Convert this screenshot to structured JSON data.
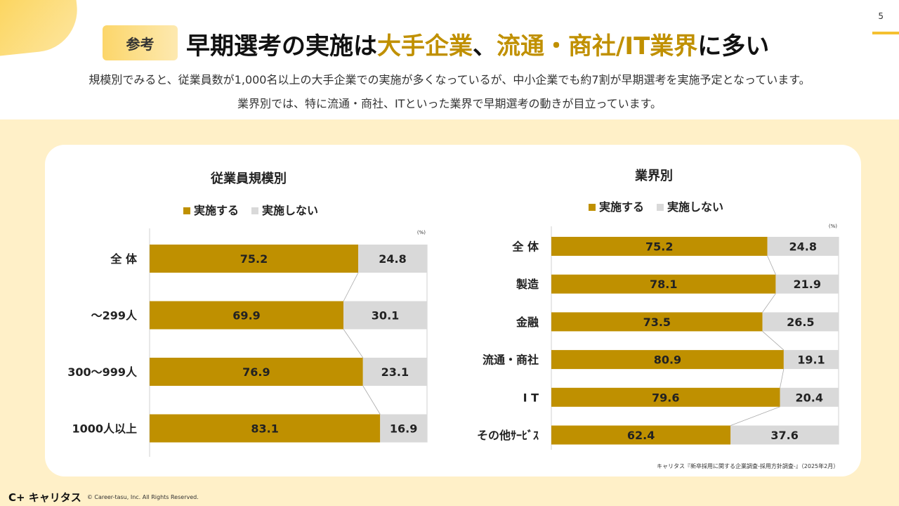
{
  "page_number": "5",
  "badge": "参考",
  "title": {
    "pre": "早期選考の実施は",
    "hl1": "大手企業",
    "mid": "、",
    "hl2": "流通・商社/IT業界",
    "post": "に多い"
  },
  "subtitle_lines": [
    "規模別でみると、従業員数が1,000名以上の大手企業での実施が多くなっているが、中小企業でも約7割が早期選考を実施予定となっています。",
    "業界別では、特に流通・商社、ITといった業界で早期選考の動きが目立っています。"
  ],
  "colors": {
    "implement": "#bf9000",
    "not_implement": "#d9d9d9",
    "accent": "#c09000"
  },
  "chart_data": [
    {
      "type": "bar",
      "stacked": true,
      "orientation": "horizontal",
      "title": "従業員規模別",
      "unit": "(%)",
      "legend_position": "top",
      "categories": [
        "全 体",
        "～299人",
        "300～999人",
        "1000人以上"
      ],
      "series": [
        {
          "name": "実施する",
          "values": [
            75.2,
            69.9,
            76.9,
            83.1
          ]
        },
        {
          "name": "実施しない",
          "values": [
            24.8,
            30.1,
            23.1,
            16.9
          ]
        }
      ],
      "xlim": [
        0,
        100
      ]
    },
    {
      "type": "bar",
      "stacked": true,
      "orientation": "horizontal",
      "title": "業界別",
      "unit": "(%)",
      "legend_position": "top",
      "categories": [
        "全 体",
        "製造",
        "金融",
        "流通・商社",
        "I T",
        "その他ｻｰﾋﾞｽ"
      ],
      "series": [
        {
          "name": "実施する",
          "values": [
            75.2,
            78.1,
            73.5,
            80.9,
            79.6,
            62.4
          ]
        },
        {
          "name": "実施しない",
          "values": [
            24.8,
            21.9,
            26.5,
            19.1,
            20.4,
            37.6
          ]
        }
      ],
      "xlim": [
        0,
        100
      ]
    }
  ],
  "source": "キャリタス『新卒採用に関する企業調査-採用方針調査-』（2025年2月）",
  "footer": {
    "logo": "C+ キャリタス",
    "copyright": "© Career-tasu, Inc. All Rights Reserved."
  }
}
